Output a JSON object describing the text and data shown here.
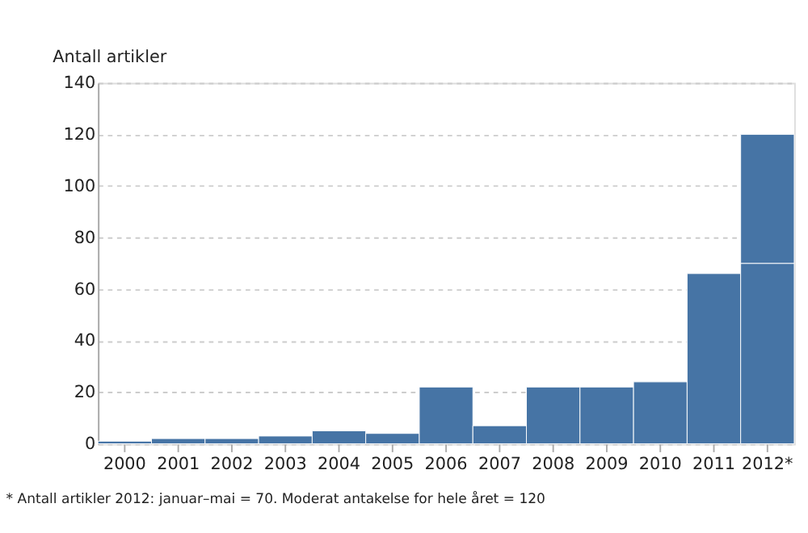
{
  "chart_data": {
    "type": "bar",
    "ylabel": "Antall artikler",
    "categories": [
      "2000",
      "2001",
      "2002",
      "2003",
      "2004",
      "2005",
      "2006",
      "2007",
      "2008",
      "2009",
      "2010",
      "2011",
      "2012*"
    ],
    "stacked": true,
    "series": [
      {
        "color": "#4674a5",
        "values": [
          1,
          2,
          2,
          3,
          5,
          4,
          22,
          7,
          22,
          22,
          24,
          66,
          70
        ]
      },
      {
        "color": "#4674a5",
        "values": [
          null,
          null,
          null,
          null,
          null,
          null,
          null,
          null,
          null,
          null,
          null,
          null,
          50
        ]
      }
    ],
    "ylim": [
      0,
      140
    ],
    "yticks": [
      0,
      20,
      40,
      60,
      80,
      100,
      120,
      140
    ],
    "grid": "y",
    "annotations": [
      "* Antall artikler 2012: januar–mai = 70. Moderat antakelse for hele året = 120"
    ]
  }
}
